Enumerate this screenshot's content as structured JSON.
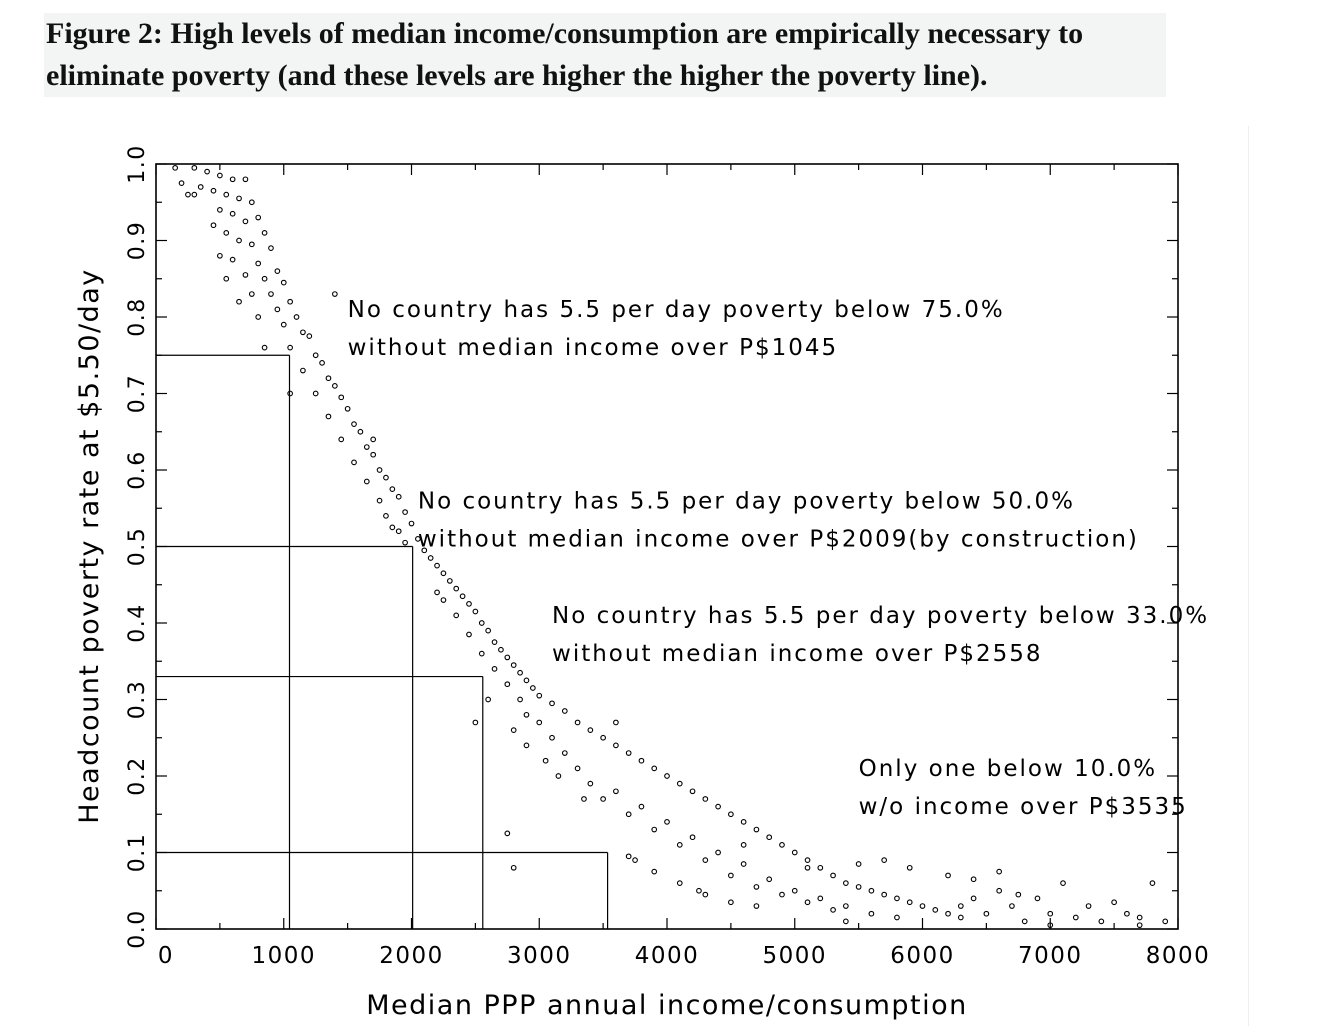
{
  "figure": {
    "caption_line1": "Figure 2:  High levels of median income/consumption are empirically necessary to",
    "caption_line2": "eliminate poverty (and these levels are higher the higher the poverty line)."
  },
  "chart_data": {
    "type": "scatter",
    "xlabel": "Median PPP annual income/consumption",
    "ylabel": "Headcount poverty rate at $5.50/day",
    "xlim": [
      0,
      8000
    ],
    "ylim": [
      0,
      1
    ],
    "x_ticks": [
      0,
      1000,
      2000,
      3000,
      4000,
      5000,
      6000,
      7000,
      8000
    ],
    "y_ticks": [
      0.0,
      0.1,
      0.2,
      0.3,
      0.4,
      0.5,
      0.6,
      0.7,
      0.8,
      0.9,
      1.0
    ],
    "x_tick_labels": [
      "0",
      "1000",
      "2000",
      "3000",
      "4000",
      "5000",
      "6000",
      "7000",
      "8000"
    ],
    "y_tick_labels": [
      "0.0",
      "0.1",
      "0.2",
      "0.3",
      "0.4",
      "0.5",
      "0.6",
      "0.7",
      "0.8",
      "0.9",
      "1.0"
    ],
    "grid": false,
    "marker": "open-circle",
    "thresholds": [
      {
        "poverty": 0.75,
        "income": 1045
      },
      {
        "poverty": 0.5,
        "income": 2009
      },
      {
        "poverty": 0.33,
        "income": 2558
      },
      {
        "poverty": 0.1,
        "income": 3535
      }
    ],
    "annotations": [
      {
        "line1": "No country has 5.5 per day poverty below 75.0%",
        "line2": "without median income over P$1045",
        "x": 1500,
        "y": 0.8
      },
      {
        "line1": "No country has 5.5 per day poverty below 50.0%",
        "line2": "without median income over P$2009(by construction)",
        "x": 2050,
        "y": 0.55
      },
      {
        "line1": "No country has 5.5 per day poverty below 33.0%",
        "line2": "without median income over P$2558",
        "x": 3100,
        "y": 0.4
      },
      {
        "line1": "Only one below 10.0%",
        "line2": "w/o income over P$3535",
        "x": 5500,
        "y": 0.2
      }
    ],
    "points": [
      [
        150,
        0.995
      ],
      [
        300,
        0.995
      ],
      [
        400,
        0.99
      ],
      [
        500,
        0.985
      ],
      [
        600,
        0.98
      ],
      [
        700,
        0.98
      ],
      [
        200,
        0.975
      ],
      [
        350,
        0.97
      ],
      [
        450,
        0.965
      ],
      [
        550,
        0.96
      ],
      [
        650,
        0.955
      ],
      [
        250,
        0.96
      ],
      [
        750,
        0.95
      ],
      [
        500,
        0.94
      ],
      [
        600,
        0.935
      ],
      [
        800,
        0.93
      ],
      [
        700,
        0.925
      ],
      [
        450,
        0.92
      ],
      [
        550,
        0.91
      ],
      [
        850,
        0.91
      ],
      [
        650,
        0.9
      ],
      [
        750,
        0.895
      ],
      [
        900,
        0.89
      ],
      [
        500,
        0.88
      ],
      [
        600,
        0.875
      ],
      [
        800,
        0.87
      ],
      [
        950,
        0.86
      ],
      [
        700,
        0.855
      ],
      [
        850,
        0.85
      ],
      [
        1000,
        0.845
      ],
      [
        550,
        0.85
      ],
      [
        750,
        0.83
      ],
      [
        900,
        0.83
      ],
      [
        1050,
        0.82
      ],
      [
        650,
        0.82
      ],
      [
        950,
        0.81
      ],
      [
        1100,
        0.8
      ],
      [
        800,
        0.8
      ],
      [
        1000,
        0.79
      ],
      [
        1150,
        0.78
      ],
      [
        1200,
        0.775
      ],
      [
        1050,
        0.76
      ],
      [
        1250,
        0.75
      ],
      [
        1300,
        0.74
      ],
      [
        1150,
        0.73
      ],
      [
        1350,
        0.72
      ],
      [
        1400,
        0.71
      ],
      [
        1250,
        0.7
      ],
      [
        1450,
        0.695
      ],
      [
        1500,
        0.68
      ],
      [
        1350,
        0.67
      ],
      [
        1550,
        0.66
      ],
      [
        1600,
        0.65
      ],
      [
        1450,
        0.64
      ],
      [
        1650,
        0.63
      ],
      [
        1700,
        0.62
      ],
      [
        1550,
        0.61
      ],
      [
        1750,
        0.6
      ],
      [
        1800,
        0.59
      ],
      [
        1650,
        0.585
      ],
      [
        1850,
        0.575
      ],
      [
        1900,
        0.565
      ],
      [
        1750,
        0.56
      ],
      [
        1950,
        0.545
      ],
      [
        1800,
        0.54
      ],
      [
        2000,
        0.53
      ],
      [
        1850,
        0.525
      ],
      [
        1900,
        0.52
      ],
      [
        2050,
        0.51
      ],
      [
        1950,
        0.505
      ],
      [
        2100,
        0.495
      ],
      [
        2150,
        0.485
      ],
      [
        2200,
        0.475
      ],
      [
        2250,
        0.465
      ],
      [
        2300,
        0.455
      ],
      [
        2350,
        0.445
      ],
      [
        2400,
        0.435
      ],
      [
        2250,
        0.43
      ],
      [
        2450,
        0.425
      ],
      [
        2500,
        0.415
      ],
      [
        2350,
        0.41
      ],
      [
        2550,
        0.4
      ],
      [
        2600,
        0.39
      ],
      [
        2450,
        0.385
      ],
      [
        2650,
        0.375
      ],
      [
        2700,
        0.365
      ],
      [
        2550,
        0.36
      ],
      [
        2750,
        0.355
      ],
      [
        2800,
        0.345
      ],
      [
        2650,
        0.34
      ],
      [
        2850,
        0.335
      ],
      [
        2900,
        0.325
      ],
      [
        2750,
        0.32
      ],
      [
        2950,
        0.315
      ],
      [
        3000,
        0.305
      ],
      [
        2850,
        0.3
      ],
      [
        3100,
        0.295
      ],
      [
        2900,
        0.28
      ],
      [
        3200,
        0.285
      ],
      [
        3000,
        0.27
      ],
      [
        3300,
        0.27
      ],
      [
        2800,
        0.26
      ],
      [
        3400,
        0.26
      ],
      [
        3100,
        0.25
      ],
      [
        3500,
        0.25
      ],
      [
        2900,
        0.24
      ],
      [
        3600,
        0.24
      ],
      [
        3200,
        0.23
      ],
      [
        3700,
        0.23
      ],
      [
        3050,
        0.22
      ],
      [
        3800,
        0.22
      ],
      [
        3300,
        0.21
      ],
      [
        3900,
        0.21
      ],
      [
        3150,
        0.2
      ],
      [
        4000,
        0.2
      ],
      [
        3400,
        0.19
      ],
      [
        4100,
        0.19
      ],
      [
        3600,
        0.18
      ],
      [
        4200,
        0.18
      ],
      [
        3500,
        0.17
      ],
      [
        4300,
        0.17
      ],
      [
        3800,
        0.16
      ],
      [
        4400,
        0.16
      ],
      [
        3700,
        0.15
      ],
      [
        4500,
        0.15
      ],
      [
        4000,
        0.14
      ],
      [
        4600,
        0.14
      ],
      [
        3900,
        0.13
      ],
      [
        4700,
        0.13
      ],
      [
        4200,
        0.12
      ],
      [
        4800,
        0.12
      ],
      [
        4100,
        0.11
      ],
      [
        4900,
        0.11
      ],
      [
        4400,
        0.1
      ],
      [
        5000,
        0.1
      ],
      [
        3700,
        0.095
      ],
      [
        4300,
        0.09
      ],
      [
        5100,
        0.09
      ],
      [
        4600,
        0.085
      ],
      [
        5200,
        0.08
      ],
      [
        3900,
        0.075
      ],
      [
        4500,
        0.07
      ],
      [
        5300,
        0.07
      ],
      [
        4800,
        0.065
      ],
      [
        5400,
        0.06
      ],
      [
        4100,
        0.06
      ],
      [
        4700,
        0.055
      ],
      [
        5500,
        0.055
      ],
      [
        5000,
        0.05
      ],
      [
        5600,
        0.05
      ],
      [
        4300,
        0.045
      ],
      [
        4900,
        0.045
      ],
      [
        5700,
        0.045
      ],
      [
        5200,
        0.04
      ],
      [
        5800,
        0.04
      ],
      [
        4500,
        0.035
      ],
      [
        5100,
        0.035
      ],
      [
        5900,
        0.035
      ],
      [
        5400,
        0.03
      ],
      [
        6000,
        0.03
      ],
      [
        4700,
        0.03
      ],
      [
        5300,
        0.025
      ],
      [
        6100,
        0.025
      ],
      [
        5600,
        0.02
      ],
      [
        6200,
        0.02
      ],
      [
        6300,
        0.03
      ],
      [
        6400,
        0.04
      ],
      [
        6500,
        0.02
      ],
      [
        6600,
        0.05
      ],
      [
        6700,
        0.03
      ],
      [
        6800,
        0.01
      ],
      [
        6900,
        0.04
      ],
      [
        7000,
        0.02
      ],
      [
        7100,
        0.06
      ],
      [
        7200,
        0.015
      ],
      [
        7300,
        0.03
      ],
      [
        7400,
        0.01
      ],
      [
        7500,
        0.035
      ],
      [
        7600,
        0.02
      ],
      [
        7700,
        0.015
      ],
      [
        7800,
        0.06
      ],
      [
        7900,
        0.01
      ],
      [
        6200,
        0.07
      ],
      [
        6400,
        0.065
      ],
      [
        6600,
        0.075
      ],
      [
        5900,
        0.08
      ],
      [
        5700,
        0.09
      ],
      [
        2800,
        0.08
      ],
      [
        1050,
        0.7
      ],
      [
        5400,
        0.01
      ],
      [
        2750,
        0.125
      ],
      [
        3750,
        0.09
      ],
      [
        4600,
        0.11
      ],
      [
        5500,
        0.085
      ],
      [
        6300,
        0.015
      ],
      [
        7000,
        0.005
      ],
      [
        7700,
        0.005
      ],
      [
        2500,
        0.27
      ],
      [
        2600,
        0.3
      ],
      [
        3600,
        0.27
      ],
      [
        850,
        0.76
      ],
      [
        1400,
        0.83
      ],
      [
        300,
        0.96
      ],
      [
        1700,
        0.64
      ],
      [
        2200,
        0.44
      ],
      [
        3350,
        0.17
      ],
      [
        4250,
        0.05
      ],
      [
        5100,
        0.08
      ],
      [
        5800,
        0.015
      ],
      [
        6750,
        0.045
      ]
    ]
  }
}
